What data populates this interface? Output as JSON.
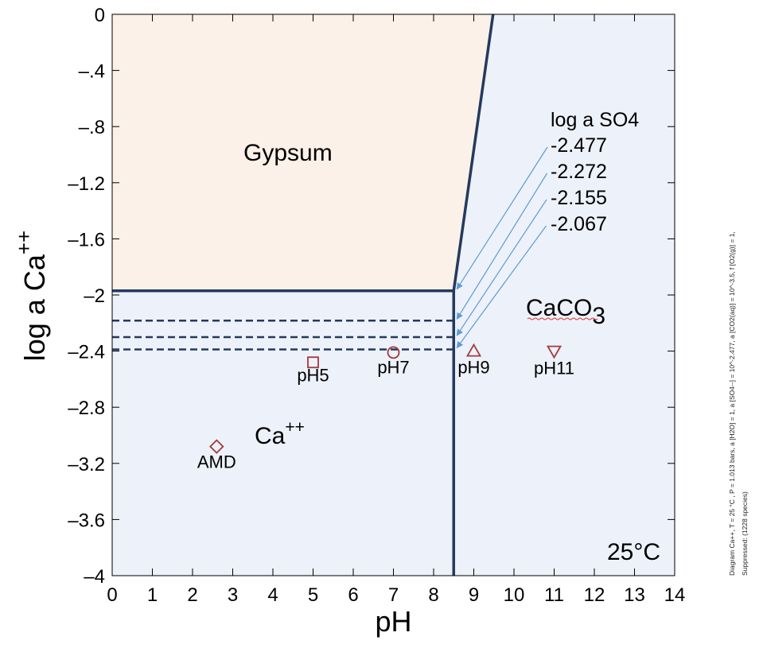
{
  "chart_data": {
    "type": "scatter",
    "title": "",
    "xlabel": "pH",
    "ylabel": "log a Ca++",
    "ylabel_main": "log a Ca",
    "ylabel_sup": "++",
    "xlim": [
      0,
      14
    ],
    "ylim": [
      -4,
      0
    ],
    "x_ticks": [
      0,
      1,
      2,
      3,
      4,
      5,
      6,
      7,
      8,
      9,
      10,
      11,
      12,
      13,
      14
    ],
    "x_tick_labels": [
      "0",
      "1",
      "2",
      "3",
      "4",
      "5",
      "6",
      "7",
      "8",
      "9",
      "10",
      "11",
      "12",
      "13",
      "14"
    ],
    "y_ticks": [
      0,
      -0.4,
      -0.8,
      -1.2,
      -1.6,
      -2,
      -2.4,
      -2.8,
      -3.2,
      -3.6,
      -4
    ],
    "y_tick_labels": [
      "0",
      "–.4",
      "–.8",
      "–1.2",
      "–1.6",
      "–2",
      "–2.4",
      "–2.8",
      "–3.2",
      "–3.6",
      "–4"
    ],
    "grid": false,
    "fields": [
      {
        "name": "Gypsum",
        "label": "Gypsum",
        "color": "#fbf1e8"
      },
      {
        "name": "Ca++",
        "label_main": "Ca",
        "label_sup": "++",
        "color": "#edf1f9"
      },
      {
        "name": "CaCO3",
        "label_main": "CaCO",
        "label_sub": "3",
        "color": "#edf1f9"
      }
    ],
    "boundaries": {
      "gypsum_ca": {
        "y": -1.97,
        "x": [
          0,
          8.5
        ]
      },
      "ca_caco3": {
        "x": 8.5,
        "y": [
          -4,
          -1.97
        ]
      },
      "gypsum_caco3": {
        "points": [
          [
            8.5,
            -1.97
          ],
          [
            9.48,
            0
          ]
        ]
      }
    },
    "dashed_boundaries": [
      {
        "y": -2.183,
        "x": [
          0,
          8.5
        ]
      },
      {
        "y": -2.3,
        "x": [
          0,
          8.5
        ]
      },
      {
        "y": -2.388,
        "x": [
          0,
          8.5
        ]
      }
    ],
    "line_color": "#243a5e",
    "sulfate_annotation": {
      "title": "log a SO4",
      "values": [
        "-2.477",
        "-2.272",
        "-2.155",
        "-2.067"
      ],
      "arrow_targets": [
        [
          8.5,
          -1.97
        ],
        [
          8.5,
          -2.183
        ],
        [
          8.5,
          -2.3
        ],
        [
          8.5,
          -2.388
        ]
      ],
      "arrow_color": "#5b9bd5"
    },
    "samples": [
      {
        "label": "AMD",
        "x": 2.6,
        "y": -3.08,
        "marker": "diamond"
      },
      {
        "label": "pH5",
        "x": 5.0,
        "y": -2.48,
        "marker": "square"
      },
      {
        "label": "pH7",
        "x": 7.0,
        "y": -2.41,
        "marker": "circle"
      },
      {
        "label": "pH9",
        "x": 9.0,
        "y": -2.4,
        "marker": "triangle-up"
      },
      {
        "label": "pH11",
        "x": 11.0,
        "y": -2.4,
        "marker": "triangle-down"
      }
    ],
    "marker_color": "#a33a3a",
    "temperature_label": "25°C"
  },
  "side_note": {
    "line1": "Diagram Ca++, T = 25 °C , P = 1.013 bars, a [H2O] = 1, a [SO4--] = 10^-2.477, a [CO2(aq)] = 10^-3.5, f [O2(g)] = 1,",
    "line2": "Suppressed: (1228 species)"
  }
}
